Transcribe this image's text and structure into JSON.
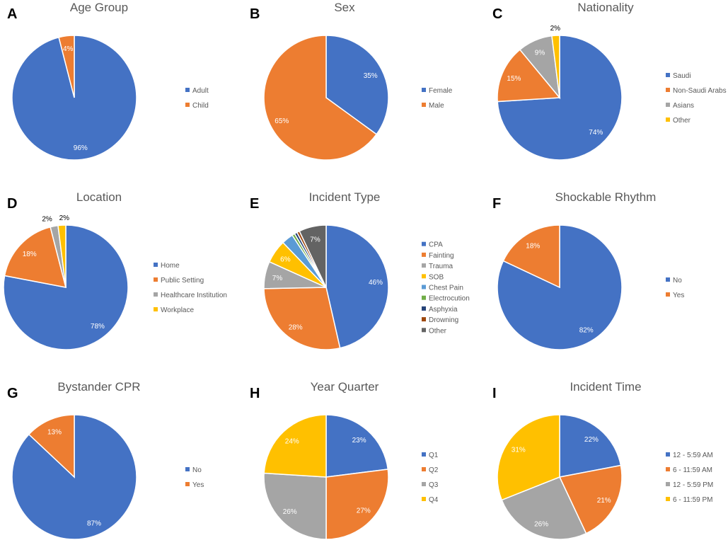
{
  "colors": {
    "blue": "#4472C4",
    "orange": "#ED7D31",
    "gray": "#A5A5A5",
    "yellow": "#FFC000",
    "lightblue": "#5B9BD5",
    "green": "#70AD47",
    "navy": "#264478",
    "brown": "#9E480E",
    "darkgray": "#636363"
  },
  "chart_data": [
    {
      "panel": "A",
      "type": "pie",
      "title": "Age Group",
      "slices": [
        {
          "name": "Adult",
          "value": 96,
          "label": "96%",
          "color": "#4472C4"
        },
        {
          "name": "Child",
          "value": 4,
          "label": "4%",
          "color": "#ED7D31"
        }
      ]
    },
    {
      "panel": "B",
      "type": "pie",
      "title": "Sex",
      "slices": [
        {
          "name": "Female",
          "value": 35,
          "label": "35%",
          "color": "#4472C4"
        },
        {
          "name": "Male",
          "value": 65,
          "label": "65%",
          "color": "#ED7D31"
        }
      ]
    },
    {
      "panel": "C",
      "type": "pie",
      "title": "Nationality",
      "slices": [
        {
          "name": "Saudi",
          "value": 74,
          "label": "74%",
          "color": "#4472C4"
        },
        {
          "name": "Non-Saudi Arabs",
          "value": 15,
          "label": "15%",
          "color": "#ED7D31"
        },
        {
          "name": "Asians",
          "value": 9,
          "label": "9%",
          "color": "#A5A5A5"
        },
        {
          "name": "Other",
          "value": 2,
          "label": "2%",
          "color": "#FFC000",
          "outside": true
        }
      ]
    },
    {
      "panel": "D",
      "type": "pie",
      "title": "Location",
      "slices": [
        {
          "name": "Home",
          "value": 78,
          "label": "78%",
          "color": "#4472C4"
        },
        {
          "name": "Public Setting",
          "value": 18,
          "label": "18%",
          "color": "#ED7D31"
        },
        {
          "name": "Healthcare Institution",
          "value": 2,
          "label": "2%",
          "color": "#A5A5A5",
          "outside": true
        },
        {
          "name": "Workplace",
          "value": 2,
          "label": "2%",
          "color": "#FFC000",
          "outside": true
        }
      ]
    },
    {
      "panel": "E",
      "type": "pie",
      "title": "Incident Type",
      "slices": [
        {
          "name": "CPA",
          "value": 46,
          "label": "46%",
          "color": "#4472C4"
        },
        {
          "name": "Fainting",
          "value": 28,
          "label": "28%",
          "color": "#ED7D31"
        },
        {
          "name": "Trauma",
          "value": 7,
          "label": "7%",
          "color": "#A5A5A5"
        },
        {
          "name": "SOB",
          "value": 6,
          "label": "6%",
          "color": "#FFC000"
        },
        {
          "name": "Chest Pain",
          "value": 3,
          "label": "",
          "color": "#5B9BD5"
        },
        {
          "name": "Electrocution",
          "value": 0.7,
          "label": "",
          "color": "#70AD47"
        },
        {
          "name": "Asphyxia",
          "value": 0.7,
          "label": "",
          "color": "#264478"
        },
        {
          "name": "Drowning",
          "value": 0.7,
          "label": "",
          "color": "#9E480E"
        },
        {
          "name": "Other",
          "value": 7,
          "label": "7%",
          "color": "#636363"
        }
      ]
    },
    {
      "panel": "F",
      "type": "pie",
      "title": "Shockable Rhythm",
      "slices": [
        {
          "name": "No",
          "value": 82,
          "label": "82%",
          "color": "#4472C4"
        },
        {
          "name": "Yes",
          "value": 18,
          "label": "18%",
          "color": "#ED7D31"
        }
      ]
    },
    {
      "panel": "G",
      "type": "pie",
      "title": "Bystander CPR",
      "slices": [
        {
          "name": "No",
          "value": 87,
          "label": "87%",
          "color": "#4472C4"
        },
        {
          "name": "Yes",
          "value": 13,
          "label": "13%",
          "color": "#ED7D31"
        }
      ]
    },
    {
      "panel": "H",
      "type": "pie",
      "title": "Year Quarter",
      "slices": [
        {
          "name": "Q1",
          "value": 23,
          "label": "23%",
          "color": "#4472C4"
        },
        {
          "name": "Q2",
          "value": 27,
          "label": "27%",
          "color": "#ED7D31"
        },
        {
          "name": "Q3",
          "value": 26,
          "label": "26%",
          "color": "#A5A5A5"
        },
        {
          "name": "Q4",
          "value": 24,
          "label": "24%",
          "color": "#FFC000"
        }
      ]
    },
    {
      "panel": "I",
      "type": "pie",
      "title": "Incident Time",
      "slices": [
        {
          "name": "12 - 5:59 AM",
          "value": 22,
          "label": "22%",
          "color": "#4472C4"
        },
        {
          "name": "6 - 11:59 AM",
          "value": 21,
          "label": "21%",
          "color": "#ED7D31"
        },
        {
          "name": "12 - 5:59 PM",
          "value": 26,
          "label": "26%",
          "color": "#A5A5A5"
        },
        {
          "name": "6 - 11:59 PM",
          "value": 31,
          "label": "31%",
          "color": "#FFC000"
        }
      ]
    }
  ]
}
